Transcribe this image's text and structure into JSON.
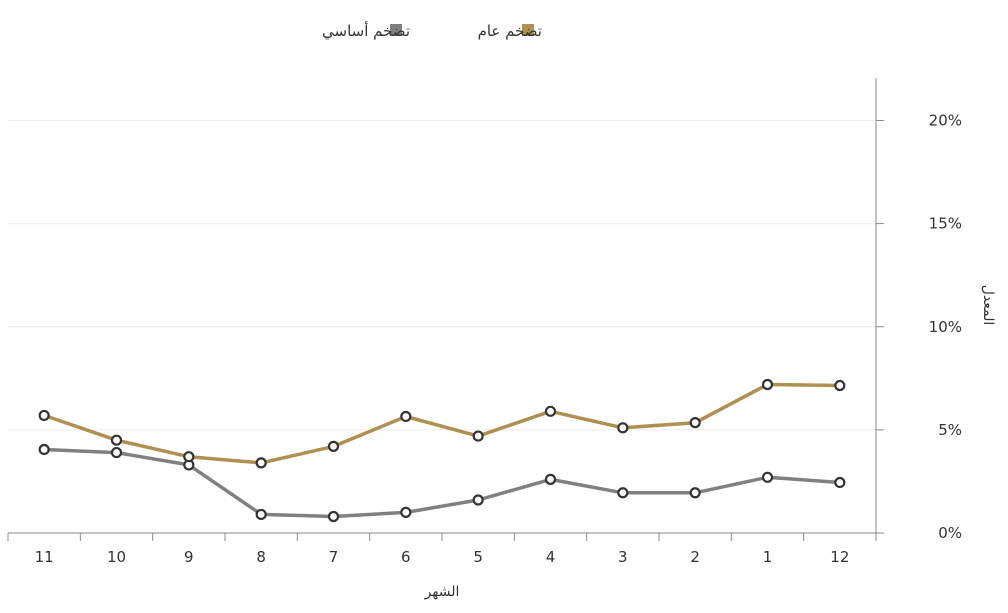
{
  "chart_data": {
    "type": "line",
    "categories": [
      "11",
      "10",
      "9",
      "8",
      "7",
      "6",
      "5",
      "4",
      "3",
      "2",
      "1",
      "12"
    ],
    "series": [
      {
        "name": "تضخم عام",
        "color": "#ae9050",
        "values": [
          5.7,
          4.5,
          3.7,
          3.4,
          4.2,
          5.65,
          4.7,
          5.9,
          5.1,
          5.35,
          7.2,
          7.15
        ]
      },
      {
        "name": "تضخم أساسي",
        "color": "#808080",
        "values": [
          4.05,
          3.9,
          3.3,
          0.9,
          0.8,
          1.0,
          1.6,
          2.6,
          1.95,
          1.95,
          2.7,
          2.45
        ]
      }
    ],
    "xlabel": "الشهر",
    "ylabel": "المعدل",
    "ylim": [
      0,
      22
    ],
    "yticks": [
      0,
      5,
      10,
      15,
      20
    ],
    "ytick_labels": [
      "0%",
      "5%",
      "10%",
      "15%",
      "20%"
    ],
    "y_axis_side": "right",
    "grid": true,
    "legend": "top-center"
  }
}
